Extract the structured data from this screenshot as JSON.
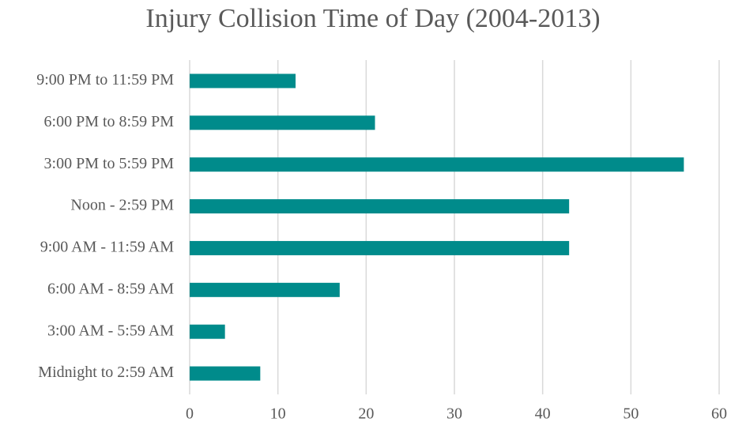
{
  "chart_data": {
    "type": "bar",
    "orientation": "horizontal",
    "title": "Injury Collision Time of Day (2004-2013)",
    "categories": [
      "9:00 PM to 11:59 PM",
      "6:00 PM to 8:59 PM",
      "3:00 PM to 5:59 PM",
      "Noon - 2:59 PM",
      "9:00 AM - 11:59 AM",
      "6:00 AM - 8:59 AM",
      "3:00 AM - 5:59 AM",
      "Midnight to 2:59 AM"
    ],
    "values": [
      12,
      21,
      56,
      43,
      43,
      17,
      4,
      8
    ],
    "color": "#008b8b",
    "xlim": [
      0,
      60
    ],
    "xticks": [
      0,
      10,
      20,
      30,
      40,
      50,
      60
    ],
    "grid": true
  }
}
